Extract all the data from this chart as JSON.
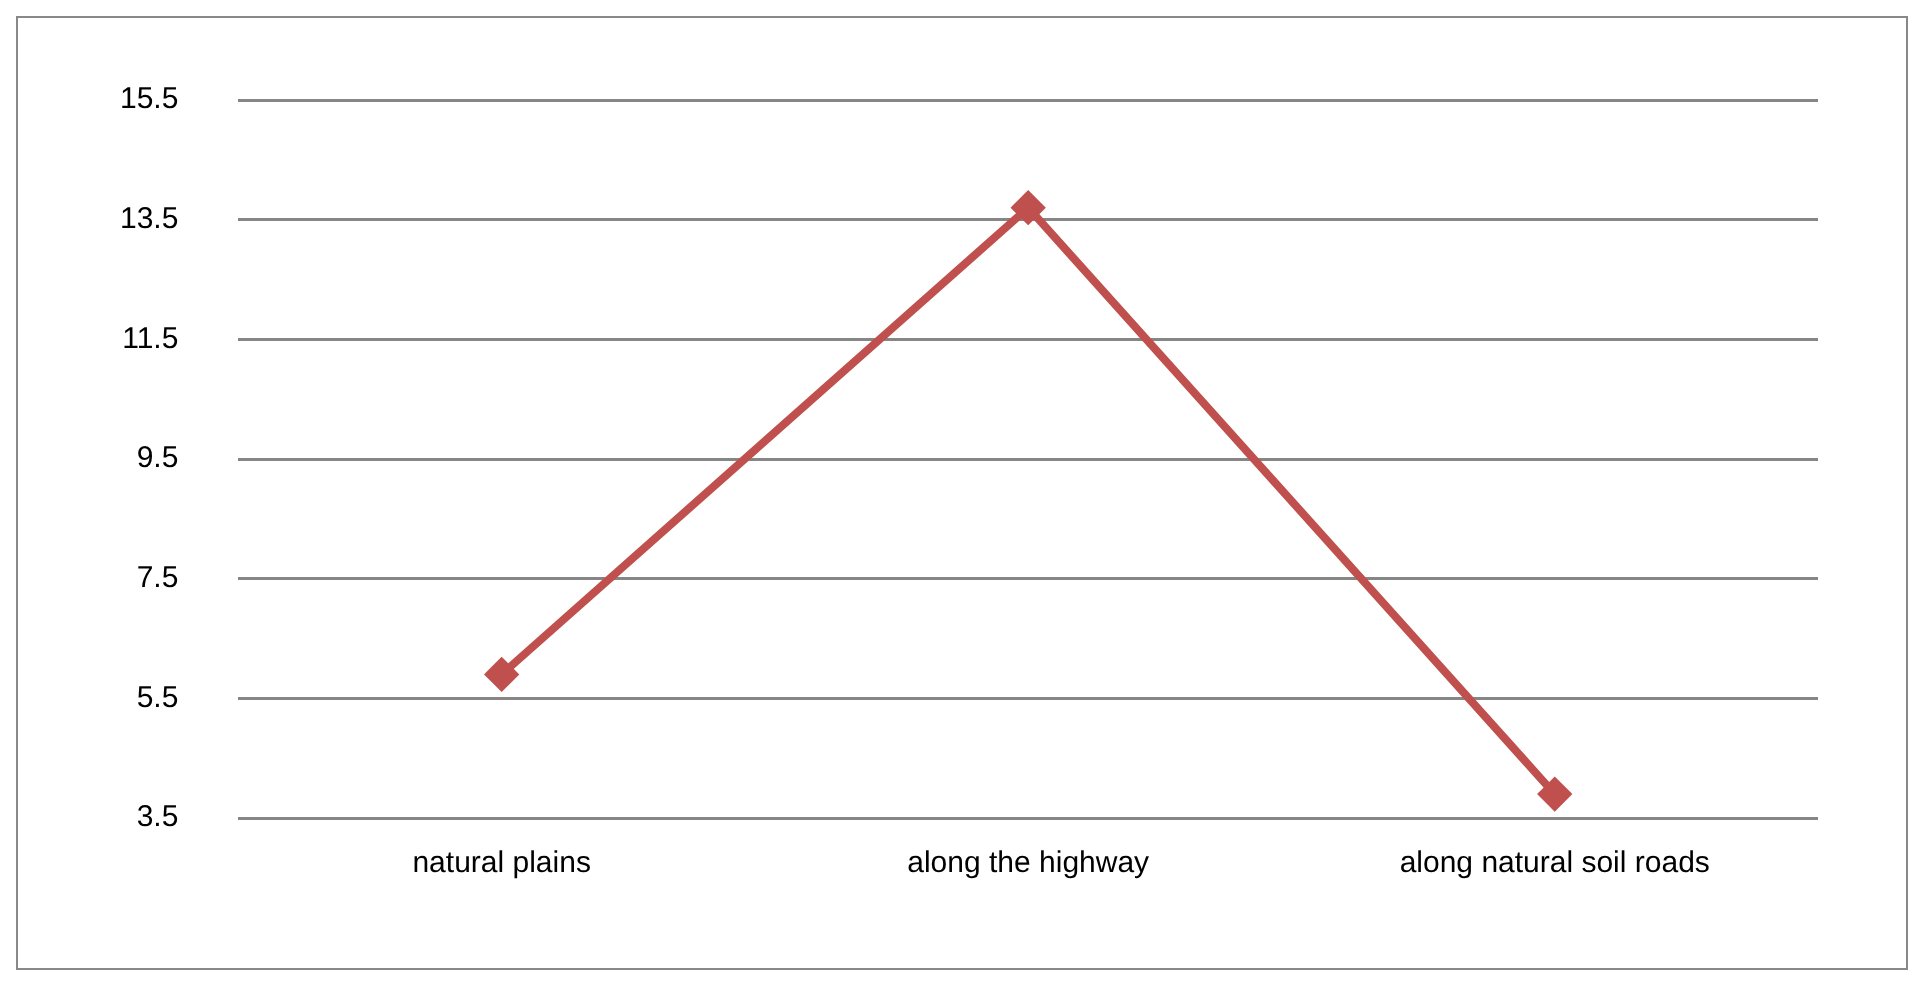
{
  "chart_data": {
    "type": "line",
    "categories": [
      "natural plains",
      "along the highway",
      "along natural soil roads"
    ],
    "series": [
      {
        "color": "#c0504d",
        "values": [
          5.9,
          13.7,
          3.9
        ]
      }
    ],
    "ylim": [
      3.5,
      15.5
    ],
    "yticks": [
      3.5,
      5.5,
      7.5,
      9.5,
      11.5,
      13.5,
      15.5
    ],
    "grid": "y",
    "legend": false,
    "marker": "diamond",
    "line_style": "solid"
  }
}
